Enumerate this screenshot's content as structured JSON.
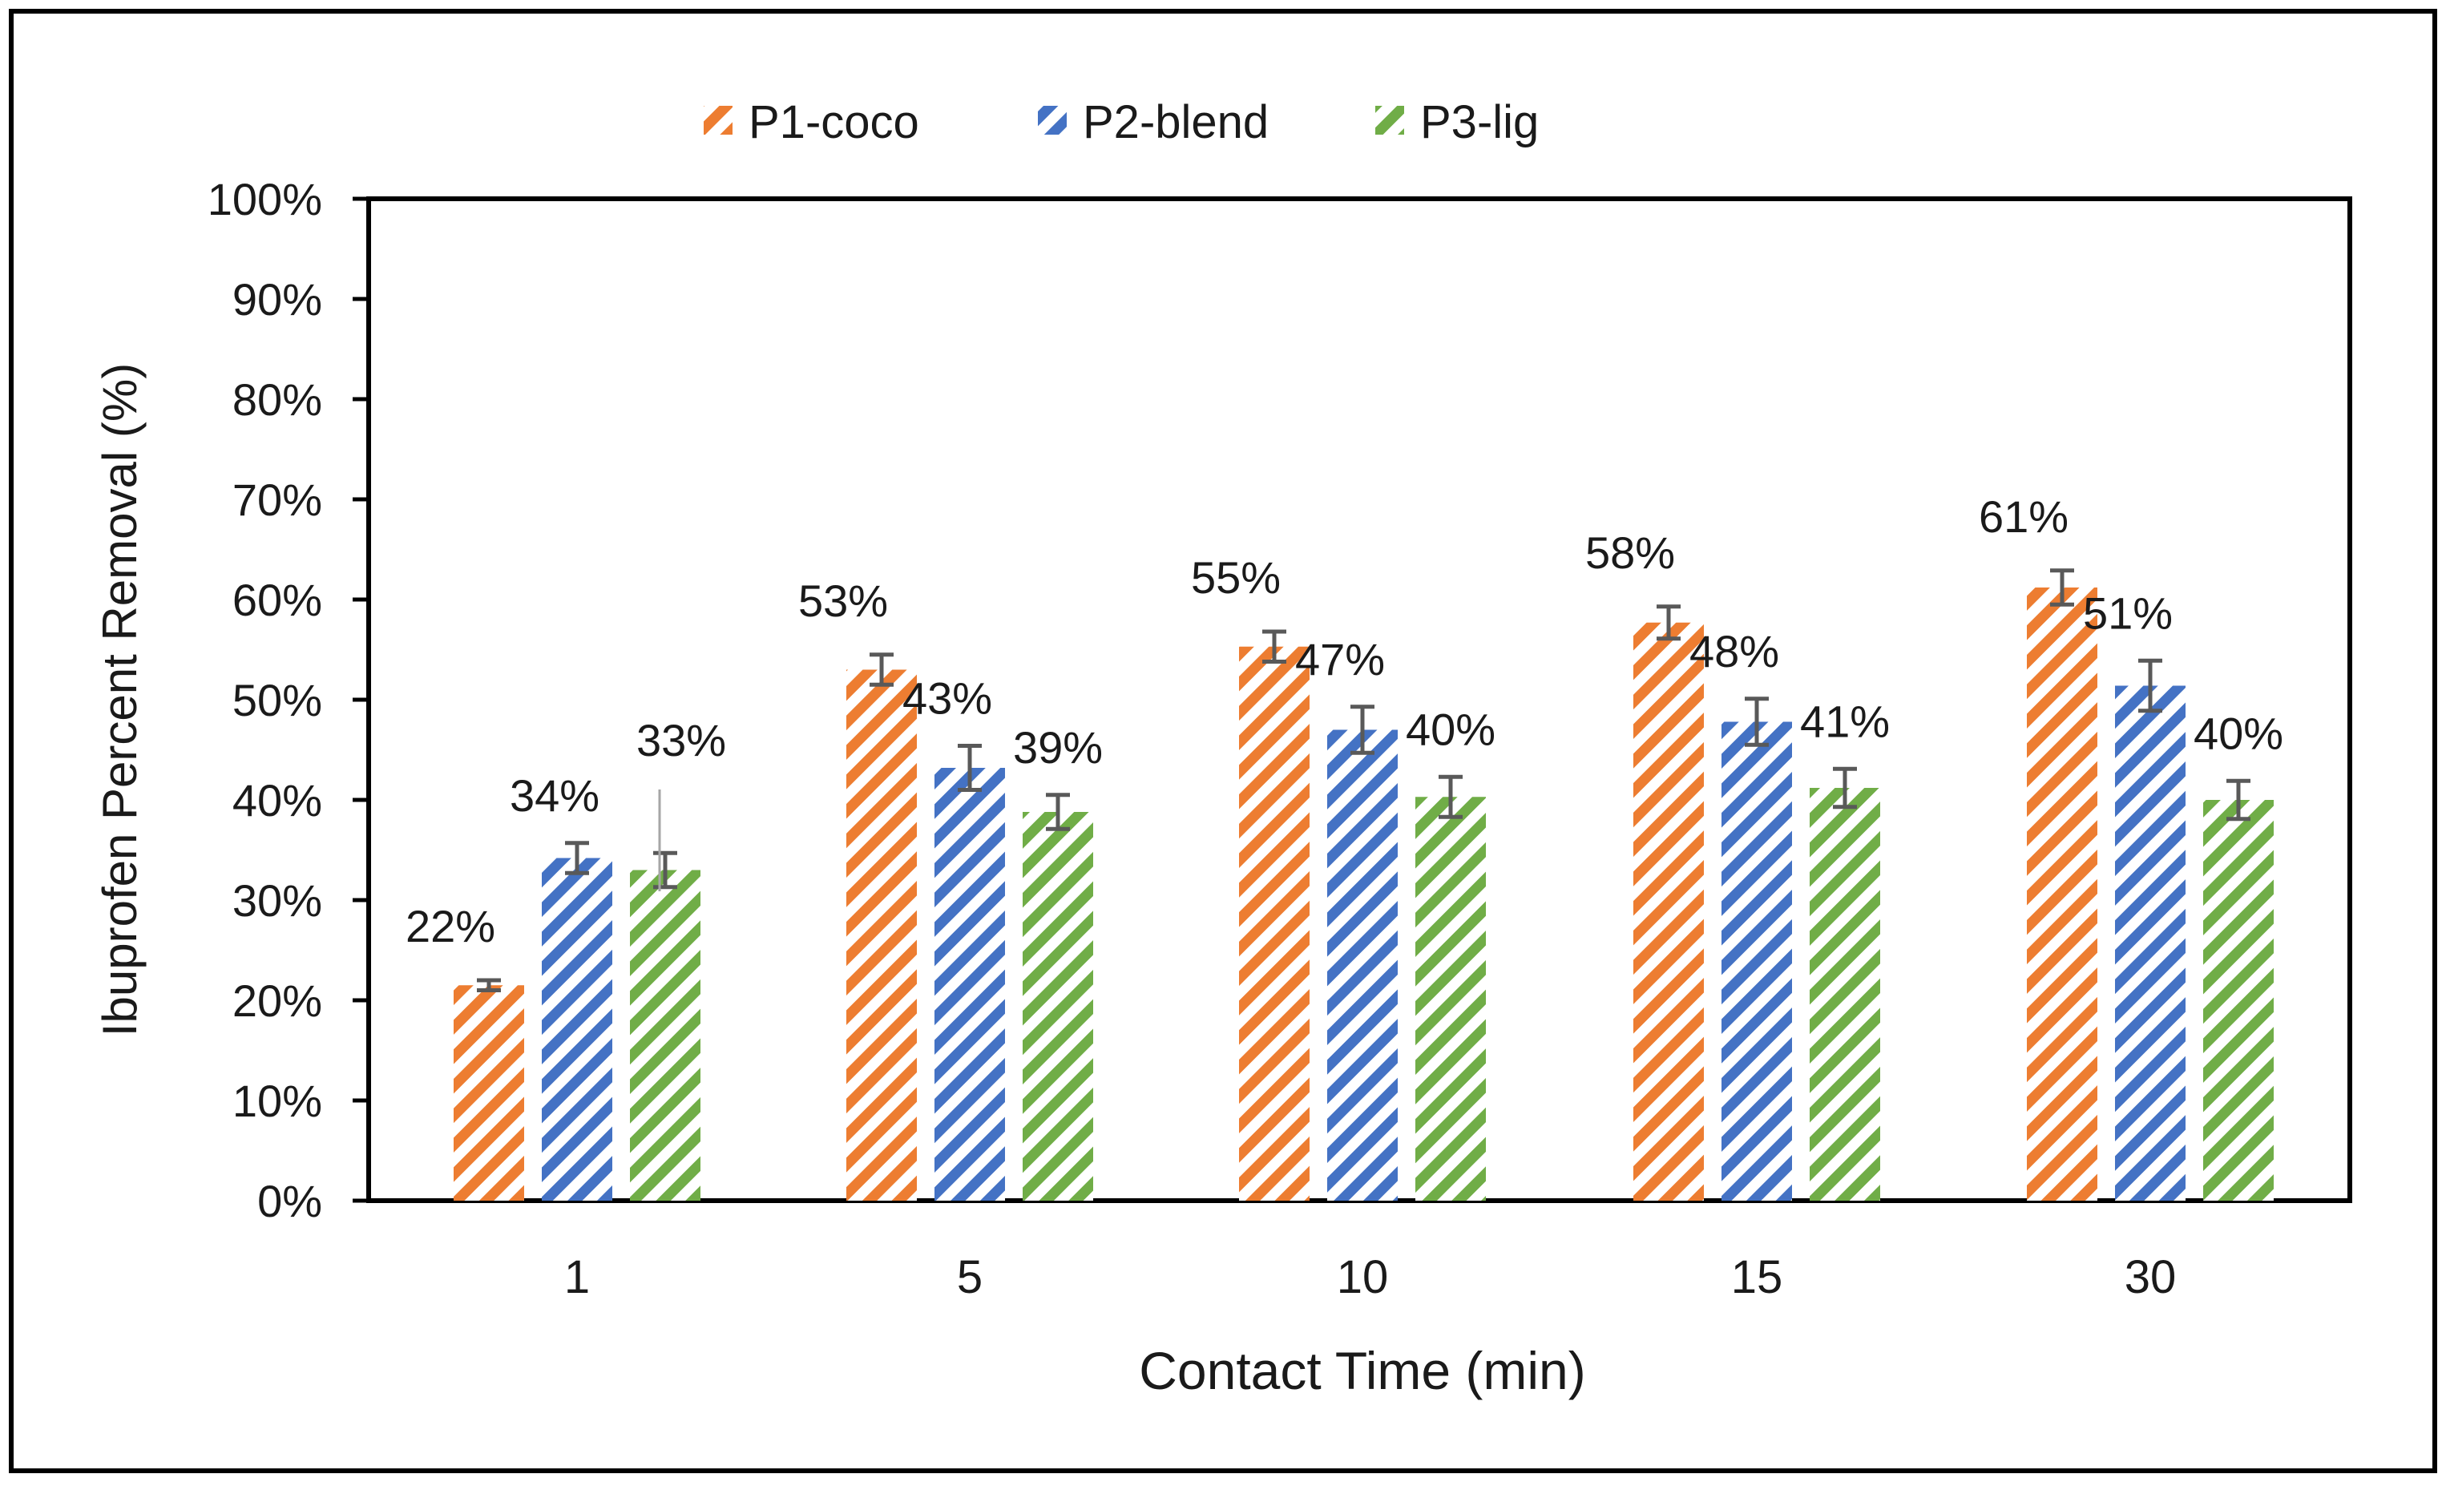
{
  "chart_data": {
    "type": "bar",
    "title": "",
    "xlabel": "Contact Time (min)",
    "ylabel": "Ibuprofen Percent Removal (%)",
    "ylim": [
      0,
      1
    ],
    "yticks": [
      "0%",
      "10%",
      "20%",
      "30%",
      "40%",
      "50%",
      "60%",
      "70%",
      "80%",
      "90%",
      "100%"
    ],
    "categories": [
      "1",
      "5",
      "10",
      "15",
      "30"
    ],
    "legend_position": "top",
    "grid": false,
    "series": [
      {
        "name": "P1-coco",
        "color": "#ED7D31",
        "values": [
          0.215,
          0.53,
          0.553,
          0.577,
          0.612
        ],
        "errors": [
          0.005,
          0.015,
          0.015,
          0.016,
          0.017
        ],
        "labels": [
          "22%",
          "53%",
          "55%",
          "58%",
          "61%"
        ]
      },
      {
        "name": "P2-blend",
        "color": "#4472C4",
        "values": [
          0.342,
          0.432,
          0.47,
          0.478,
          0.514
        ],
        "errors": [
          0.015,
          0.022,
          0.023,
          0.023,
          0.025
        ],
        "labels": [
          "34%",
          "43%",
          "47%",
          "48%",
          "51%"
        ]
      },
      {
        "name": "P3-lig",
        "color": "#70AD47",
        "values": [
          0.33,
          0.388,
          0.403,
          0.412,
          0.4
        ],
        "errors": [
          0.017,
          0.017,
          0.02,
          0.019,
          0.019
        ],
        "labels": [
          "33%",
          "39%",
          "40%",
          "41%",
          "40%"
        ]
      }
    ],
    "annotations": [
      "thin gray leader line from the 33% label down to the P3-lig bar at 1 min"
    ]
  }
}
